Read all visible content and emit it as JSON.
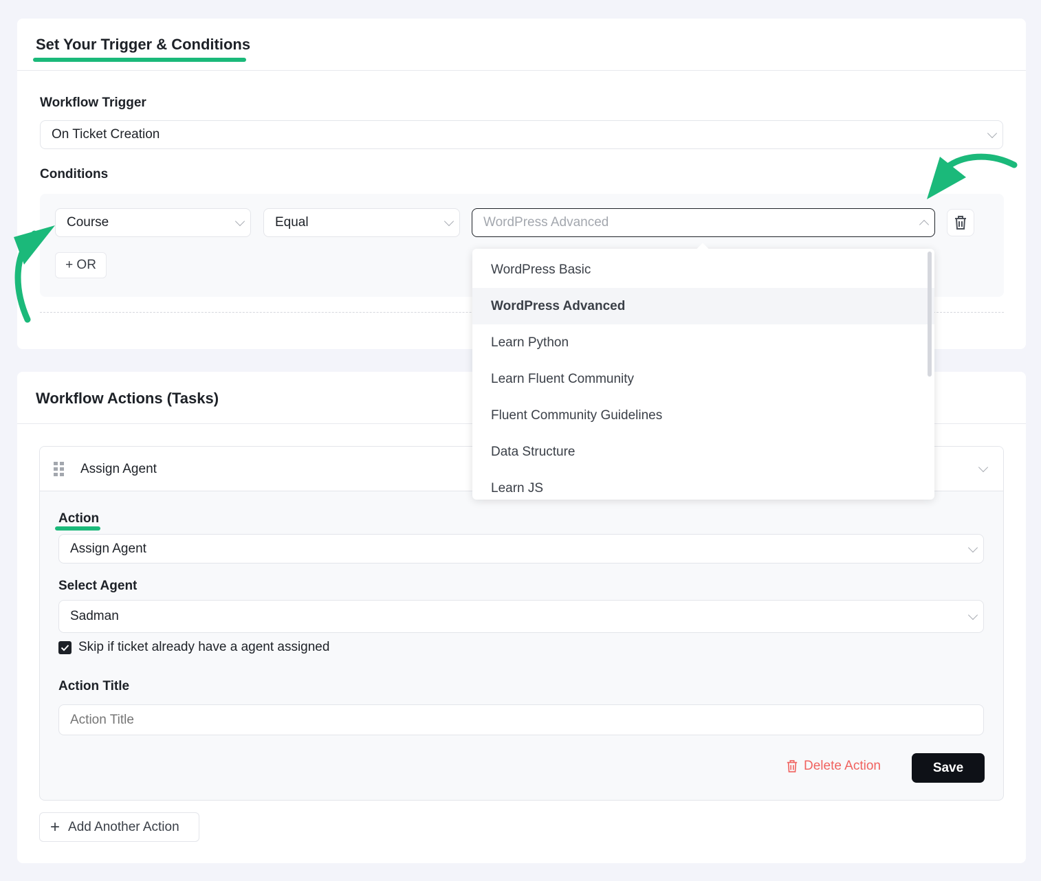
{
  "trigger_section": {
    "tab_title": "Set Your Trigger & Conditions",
    "trigger_label": "Workflow Trigger",
    "trigger_value": "On Ticket Creation",
    "conditions_label": "Conditions",
    "condition": {
      "field": "Course",
      "operator": "Equal",
      "value": "WordPress Advanced"
    },
    "or_button": "+ OR",
    "dropdown_options": [
      "WordPress Basic",
      "WordPress Advanced",
      "Learn Python",
      "Learn Fluent Community",
      "Fluent Community Guidelines",
      "Data Structure",
      "Learn JS"
    ],
    "selected_option": "WordPress Advanced"
  },
  "actions_section": {
    "title": "Workflow Actions (Tasks)",
    "action_card_title": "Assign Agent",
    "action_label": "Action",
    "action_value": "Assign Agent",
    "select_agent_label": "Select Agent",
    "agent_value": "Sadman",
    "skip_checkbox_label": "Skip if ticket already have a agent assigned",
    "skip_checked": true,
    "action_title_label": "Action Title",
    "action_title_placeholder": "Action Title",
    "delete_button": "Delete Action",
    "save_button": "Save",
    "add_action_button": "Add Another Action"
  },
  "colors": {
    "accent": "#1bb97a",
    "danger": "#f0625f",
    "primary_button": "#0e1117"
  }
}
